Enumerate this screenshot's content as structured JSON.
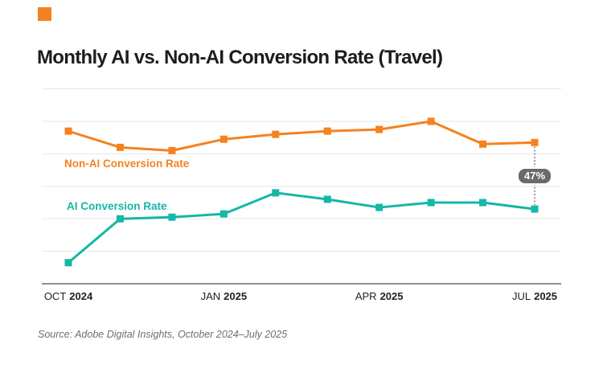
{
  "brand": {
    "logo_color": "#F58220"
  },
  "title": "Monthly AI vs. Non-AI Conversion Rate (Travel)",
  "source": "Source: Adobe Digital Insights, October 2024–July 2025",
  "colors": {
    "non_ai": "#F5821F",
    "ai": "#15B7A5",
    "badge_bg": "#6A6A6A",
    "badge_text": "#FFFFFF",
    "connector": "#9E9E9E",
    "gridline": "#E7E7E7",
    "axis_line": "#8F8F8F",
    "title_text": "#1D1D1D",
    "axis_label_text": "#222222",
    "source_text": "#6F6F6F"
  },
  "chart_data": {
    "type": "line",
    "title": "Monthly AI vs. Non-AI Conversion Rate (Travel)",
    "grid": "horizontal",
    "y_axis_labels_visible": false,
    "y_values_note": "y-axis unlabeled; values estimated in gridline units (0 = baseline axis, 6 = top gridline), consistent with conversion-rate %",
    "ylim": [
      0,
      6
    ],
    "categories": [
      "Oct 2024",
      "Nov 2024",
      "Dec 2024",
      "Jan 2025",
      "Feb 2025",
      "Mar 2025",
      "Apr 2025",
      "May 2025",
      "Jun 2025",
      "Jul 2025"
    ],
    "x_ticks": [
      {
        "month": "OCT",
        "year": "2024",
        "index": 0
      },
      {
        "month": "JAN",
        "year": "2025",
        "index": 3
      },
      {
        "month": "APR",
        "year": "2025",
        "index": 6
      },
      {
        "month": "JUL",
        "year": "2025",
        "index": 9
      }
    ],
    "series": [
      {
        "name": "Non-AI Conversion Rate",
        "color": "#F5821F",
        "marker": "square",
        "values": [
          4.7,
          4.2,
          4.1,
          4.45,
          4.6,
          4.7,
          4.75,
          5.0,
          4.3,
          4.35
        ]
      },
      {
        "name": "AI Conversion Rate",
        "color": "#15B7A5",
        "marker": "square",
        "values": [
          0.65,
          2.0,
          2.05,
          2.15,
          2.8,
          2.6,
          2.35,
          2.5,
          2.5,
          2.3
        ]
      }
    ],
    "annotation": {
      "text": "47%",
      "at_category": "Jul 2025"
    },
    "legend_position": "inline-labels"
  }
}
